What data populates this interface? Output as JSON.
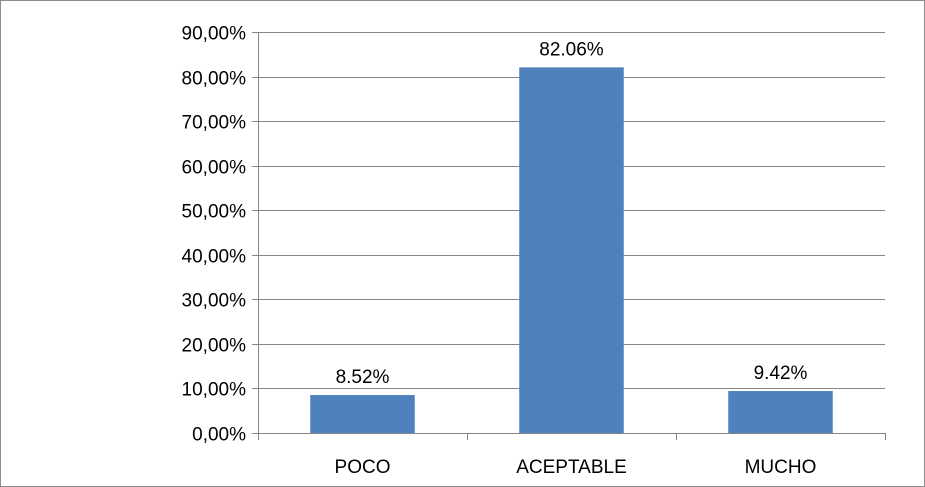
{
  "chart_data": {
    "type": "bar",
    "categories": [
      "POCO",
      "ACEPTABLE",
      "MUCHO"
    ],
    "values": [
      8.52,
      82.06,
      9.42
    ],
    "data_labels": [
      "8.52%",
      "82.06%",
      "9.42%"
    ],
    "title": "",
    "xlabel": "",
    "ylabel": "",
    "ylim": [
      0,
      90
    ],
    "y_ticks": [
      0,
      10,
      20,
      30,
      40,
      50,
      60,
      70,
      80,
      90
    ],
    "y_tick_labels": [
      "0,00%",
      "10,00%",
      "20,00%",
      "30,00%",
      "40,00%",
      "50,00%",
      "60,00%",
      "70,00%",
      "80,00%",
      "90,00%"
    ],
    "grid": true,
    "legend": "none",
    "colors": {
      "bar": "#4f81bd",
      "grid": "#868686",
      "axis": "#868686",
      "border": "#8c8c8c"
    }
  }
}
